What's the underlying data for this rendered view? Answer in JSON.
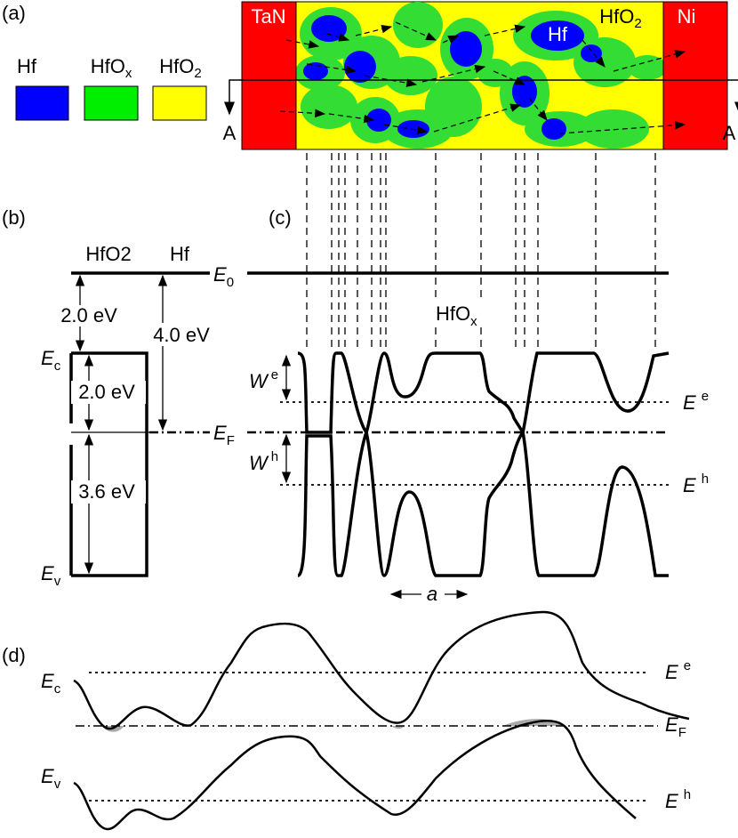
{
  "panel_a": {
    "label": "(a)",
    "legend": [
      {
        "main": "Hf"
      },
      {
        "main": "HfO",
        "sub": "x"
      },
      {
        "main": "HfO",
        "sub": "2"
      }
    ],
    "left_electrode": "TaN",
    "right_electrode": "Ni",
    "cluster_label": "Hf",
    "matrix_label": {
      "main": "HfO",
      "sub": "2"
    },
    "section_left": "A",
    "section_right": "A"
  },
  "panel_b": {
    "label": "(b)",
    "column_left": {
      "main": "HfO",
      "sub": "2"
    },
    "column_right": "Hf",
    "vacuum_level": {
      "main": "E",
      "sub": "0"
    },
    "electron_affinity": "2.0 eV",
    "work_function": "4.0 eV",
    "upper_gap": "2.0 eV",
    "lower_gap": "3.6 eV",
    "conduction_band": {
      "main": "E",
      "sub": "c"
    },
    "fermi_level": {
      "main": "E",
      "sub": "F"
    },
    "valence_band": {
      "main": "E",
      "sub": "v"
    }
  },
  "panel_c": {
    "label": "(c)",
    "region_label": {
      "main": "HfO",
      "sub": "x"
    },
    "electron_barrier": {
      "main": "W",
      "sup": "e"
    },
    "hole_barrier": {
      "main": "W",
      "sup": "h"
    },
    "electron_level": {
      "main": "E",
      "sup": "e"
    },
    "hole_level": {
      "main": "E",
      "sup": "h"
    },
    "scale_label": "a"
  },
  "panel_d": {
    "label": "(d)",
    "conduction_band": {
      "main": "E",
      "sub": "c"
    },
    "valence_band": {
      "main": "E",
      "sub": "v"
    },
    "fermi_level": {
      "main": "E",
      "sub": "F"
    },
    "electron_level": {
      "main": "E",
      "sup": "e"
    },
    "hole_level": {
      "main": "E",
      "sup": "h"
    }
  }
}
